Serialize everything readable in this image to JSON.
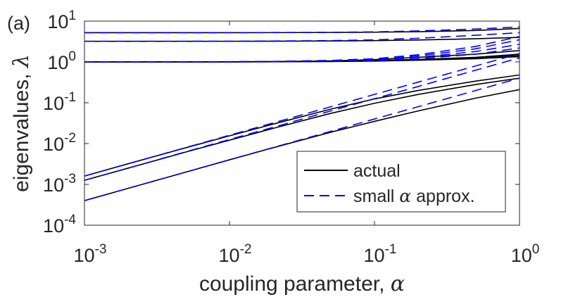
{
  "chart_data": {
    "type": "line",
    "panel_label": "(a)",
    "xlabel": "coupling parameter, ",
    "xlabel_symbol": "α",
    "ylabel": "eigenvalues, ",
    "ylabel_symbol": "λ",
    "xscale": "log",
    "yscale": "log",
    "xlim": [
      0.001,
      1
    ],
    "ylim": [
      0.0001,
      10
    ],
    "x_ticks": [
      {
        "value": 0.001,
        "base": "10",
        "exp": "-3"
      },
      {
        "value": 0.01,
        "base": "10",
        "exp": "-2"
      },
      {
        "value": 0.1,
        "base": "10",
        "exp": "-1"
      },
      {
        "value": 1,
        "base": "10",
        "exp": "0"
      }
    ],
    "y_ticks": [
      {
        "value": 0.0001,
        "base": "10",
        "exp": "-4"
      },
      {
        "value": 0.001,
        "base": "10",
        "exp": "-3"
      },
      {
        "value": 0.01,
        "base": "10",
        "exp": "-2"
      },
      {
        "value": 0.1,
        "base": "10",
        "exp": "-1"
      },
      {
        "value": 1,
        "base": "10",
        "exp": "0"
      },
      {
        "value": 10,
        "base": "10",
        "exp": "1"
      }
    ],
    "legend": {
      "position": "lower-right",
      "entries": [
        {
          "label": "actual",
          "style": "solid",
          "color": "#000000"
        },
        {
          "label": "small ",
          "symbol": "α",
          "label_suffix": " approx.",
          "style": "dashed",
          "color": "#0000ff"
        }
      ]
    },
    "x_samples": [
      0.001,
      0.002,
      0.005,
      0.01,
      0.02,
      0.05,
      0.1,
      0.2,
      0.5,
      1
    ],
    "series": [
      {
        "name": "actual",
        "style": "solid",
        "color": "#000000",
        "values": [
          0.0016,
          0.0032,
          0.0079,
          0.0155,
          0.03,
          0.07,
          0.124,
          0.2,
          0.34,
          0.48
        ]
      },
      {
        "name": "actual",
        "style": "solid",
        "color": "#000000",
        "values": [
          0.00126,
          0.0025,
          0.0062,
          0.0121,
          0.0236,
          0.055,
          0.097,
          0.16,
          0.28,
          0.4
        ]
      },
      {
        "name": "actual",
        "style": "solid",
        "color": "#000000",
        "values": [
          0.0004,
          0.0008,
          0.002,
          0.004,
          0.0079,
          0.019,
          0.035,
          0.063,
          0.13,
          0.21
        ]
      },
      {
        "name": "actual",
        "style": "solid",
        "color": "#000000",
        "values": [
          1,
          1,
          1.002,
          1.006,
          1.015,
          1.04,
          1.08,
          1.15,
          1.3,
          1.55
        ]
      },
      {
        "name": "actual",
        "style": "solid",
        "color": "#000000",
        "values": [
          1,
          1,
          1.002,
          1.005,
          1.012,
          1.03,
          1.06,
          1.12,
          1.25,
          1.45
        ]
      },
      {
        "name": "actual",
        "style": "solid",
        "color": "#000000",
        "values": [
          1,
          1,
          1.002,
          1.008,
          1.02,
          1.06,
          1.14,
          1.3,
          1.55,
          1.9
        ]
      },
      {
        "name": "actual",
        "style": "solid",
        "color": "#000000",
        "values": [
          1,
          1,
          1,
          1.002,
          1.006,
          1.02,
          1.05,
          1.1,
          1.2,
          1.35
        ]
      },
      {
        "name": "actual",
        "style": "solid",
        "color": "#000000",
        "values": [
          3.2,
          3.2,
          3.2,
          3.21,
          3.22,
          3.26,
          3.33,
          3.45,
          3.7,
          4
        ]
      },
      {
        "name": "actual",
        "style": "solid",
        "color": "#000000",
        "values": [
          5.2,
          5.2,
          5.2,
          5.21,
          5.22,
          5.27,
          5.35,
          5.5,
          5.9,
          6.6
        ]
      },
      {
        "name": "small α approx.",
        "style": "dashed",
        "color": "#0000ff",
        "values": [
          0.0016,
          0.0032,
          0.008,
          0.016,
          0.032,
          0.08,
          0.16,
          0.32,
          0.8,
          1.6
        ]
      },
      {
        "name": "small α approx.",
        "style": "dashed",
        "color": "#0000ff",
        "values": [
          0.00126,
          0.0025,
          0.0063,
          0.0126,
          0.025,
          0.063,
          0.126,
          0.25,
          0.63,
          1.26
        ]
      },
      {
        "name": "small α approx.",
        "style": "dashed",
        "color": "#0000ff",
        "values": [
          0.0004,
          0.0008,
          0.002,
          0.004,
          0.008,
          0.02,
          0.04,
          0.08,
          0.2,
          0.4
        ]
      },
      {
        "name": "small α approx.",
        "style": "dashed",
        "color": "#0000ff",
        "values": [
          1,
          1,
          1.003,
          1.01,
          1.025,
          1.07,
          1.16,
          1.4,
          2.1,
          3.5
        ]
      },
      {
        "name": "small α approx.",
        "style": "dashed",
        "color": "#0000ff",
        "values": [
          1,
          1,
          1.002,
          1.008,
          1.02,
          1.05,
          1.12,
          1.3,
          1.8,
          2.7
        ]
      },
      {
        "name": "small α approx.",
        "style": "dashed",
        "color": "#0000ff",
        "values": [
          1,
          1,
          1.003,
          1.012,
          1.03,
          1.09,
          1.2,
          1.5,
          2.4,
          4.2
        ]
      },
      {
        "name": "small α approx.",
        "style": "dashed",
        "color": "#0000ff",
        "values": [
          1,
          1,
          1.001,
          1.004,
          1.01,
          1.03,
          1.07,
          1.2,
          1.55,
          2.2
        ]
      },
      {
        "name": "small α approx.",
        "style": "dashed",
        "color": "#0000ff",
        "values": [
          3.2,
          3.2,
          3.21,
          3.22,
          3.25,
          3.33,
          3.48,
          3.8,
          4.5,
          5.2
        ]
      },
      {
        "name": "small α approx.",
        "style": "dashed",
        "color": "#0000ff",
        "values": [
          5.2,
          5.2,
          5.21,
          5.22,
          5.25,
          5.32,
          5.45,
          5.75,
          6.4,
          7.2
        ]
      }
    ]
  }
}
